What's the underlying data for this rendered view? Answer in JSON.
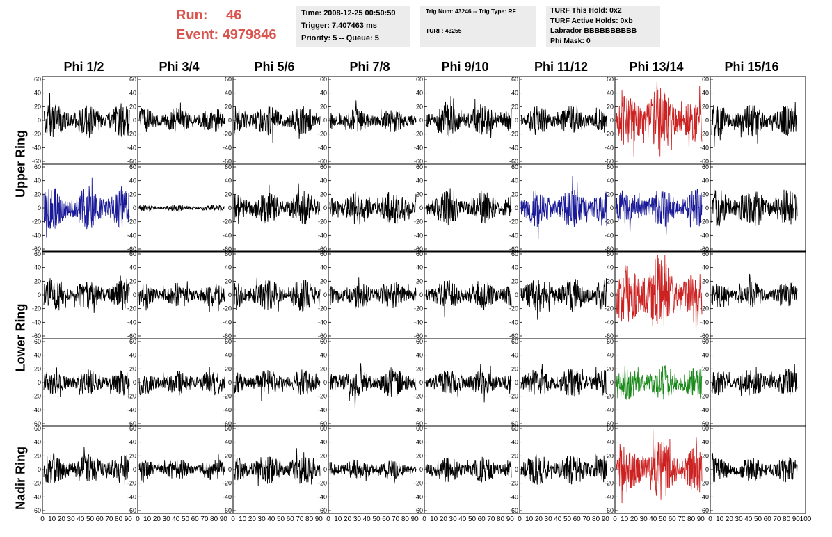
{
  "run": {
    "run_label": "Run:",
    "run_value": "46",
    "event_label": "Event:",
    "event_value": "4979846"
  },
  "info": {
    "time": "Time: 2008-12-25 00:50:59",
    "trigger": "Trigger: 7.407463 ms",
    "priority": "Priority: 5 -- Queue: 5",
    "trig_num": "Trig Num: 43246 -- Trig Type: RF",
    "turf": "TURF: 43255",
    "turf_this_hold": "TURF This Hold: 0x2",
    "turf_active_holds": "TURF Active Holds: 0xb",
    "labrador": "Labrador BBBBBBBBBB",
    "phi_mask": "Phi Mask: 0"
  },
  "columns": [
    "Phi 1/2",
    "Phi 3/4",
    "Phi 5/6",
    "Phi 7/8",
    "Phi 9/10",
    "Phi 11/12",
    "Phi 13/14",
    "Phi 15/16"
  ],
  "rings": [
    {
      "label": "Upper Ring",
      "rows": [
        0,
        1
      ]
    },
    {
      "label": "Lower Ring",
      "rows": [
        2,
        3
      ]
    },
    {
      "label": "Nadir Ring",
      "rows": [
        4
      ]
    }
  ],
  "colors": {
    "red": "#cc2222",
    "blue": "#1a1a99",
    "green": "#1a8a1a",
    "black": "#000000",
    "header_red": "#d9534f"
  },
  "chart_data": {
    "type": "line",
    "layout": "5 rows x 8 columns of waveform panels",
    "x_range": [
      0,
      100
    ],
    "y_range": [
      -60,
      60
    ],
    "y_ticks": [
      -60,
      -40,
      -20,
      0,
      20,
      40,
      60
    ],
    "x_ticks": [
      0,
      10,
      20,
      30,
      40,
      50,
      60,
      70,
      80,
      90,
      100
    ],
    "n_samples": 260,
    "panels": [
      [
        {
          "color": "black",
          "amp": 16
        },
        {
          "color": "black",
          "amp": 12
        },
        {
          "color": "black",
          "amp": 14
        },
        {
          "color": "black",
          "amp": 11
        },
        {
          "color": "black",
          "amp": 15
        },
        {
          "color": "black",
          "amp": 14
        },
        {
          "color": "red",
          "amp": 24
        },
        {
          "color": "black",
          "amp": 15
        }
      ],
      [
        {
          "color": "blue",
          "amp": 20
        },
        {
          "color": "black",
          "amp": 3
        },
        {
          "color": "black",
          "amp": 16
        },
        {
          "color": "black",
          "amp": 16
        },
        {
          "color": "black",
          "amp": 16
        },
        {
          "color": "blue",
          "amp": 18
        },
        {
          "color": "blue",
          "amp": 18
        },
        {
          "color": "black",
          "amp": 18
        }
      ],
      [
        {
          "color": "black",
          "amp": 14
        },
        {
          "color": "black",
          "amp": 11
        },
        {
          "color": "black",
          "amp": 15
        },
        {
          "color": "black",
          "amp": 13
        },
        {
          "color": "black",
          "amp": 14
        },
        {
          "color": "black",
          "amp": 16
        },
        {
          "color": "red",
          "amp": 28
        },
        {
          "color": "black",
          "amp": 12
        }
      ],
      [
        {
          "color": "black",
          "amp": 12
        },
        {
          "color": "black",
          "amp": 12
        },
        {
          "color": "black",
          "amp": 12
        },
        {
          "color": "black",
          "amp": 14
        },
        {
          "color": "black",
          "amp": 12
        },
        {
          "color": "black",
          "amp": 14
        },
        {
          "color": "green",
          "amp": 17
        },
        {
          "color": "black",
          "amp": 13
        }
      ],
      [
        {
          "color": "black",
          "amp": 15
        },
        {
          "color": "black",
          "amp": 10
        },
        {
          "color": "black",
          "amp": 14
        },
        {
          "color": "black",
          "amp": 10
        },
        {
          "color": "black",
          "amp": 12
        },
        {
          "color": "black",
          "amp": 15
        },
        {
          "color": "red",
          "amp": 22
        },
        {
          "color": "black",
          "amp": 12
        }
      ]
    ]
  }
}
